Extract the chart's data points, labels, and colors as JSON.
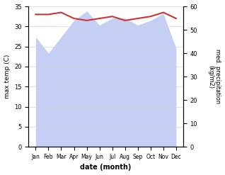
{
  "months": [
    "Jan",
    "Feb",
    "Mar",
    "Apr",
    "May",
    "Jun",
    "Jul",
    "Aug",
    "Sep",
    "Oct",
    "Nov",
    "Dec"
  ],
  "temp_max": [
    33.0,
    33.0,
    33.5,
    32.0,
    31.5,
    32.0,
    32.5,
    31.5,
    32.0,
    32.5,
    33.5,
    32.0
  ],
  "precip": [
    47,
    40,
    47,
    54,
    58,
    52,
    55,
    55,
    52,
    54,
    57,
    42
  ],
  "temp_ylim": [
    0,
    35
  ],
  "precip_ylim": [
    0,
    60
  ],
  "temp_color": "#cc3333",
  "precip_fill_color": "#c5cff5",
  "xlabel": "date (month)",
  "ylabel_left": "max temp (C)",
  "ylabel_right": "med. precipitation\n(kg/m2)",
  "temp_yticks": [
    0,
    5,
    10,
    15,
    20,
    25,
    30,
    35
  ],
  "precip_yticks": [
    0,
    10,
    20,
    30,
    40,
    50,
    60
  ]
}
